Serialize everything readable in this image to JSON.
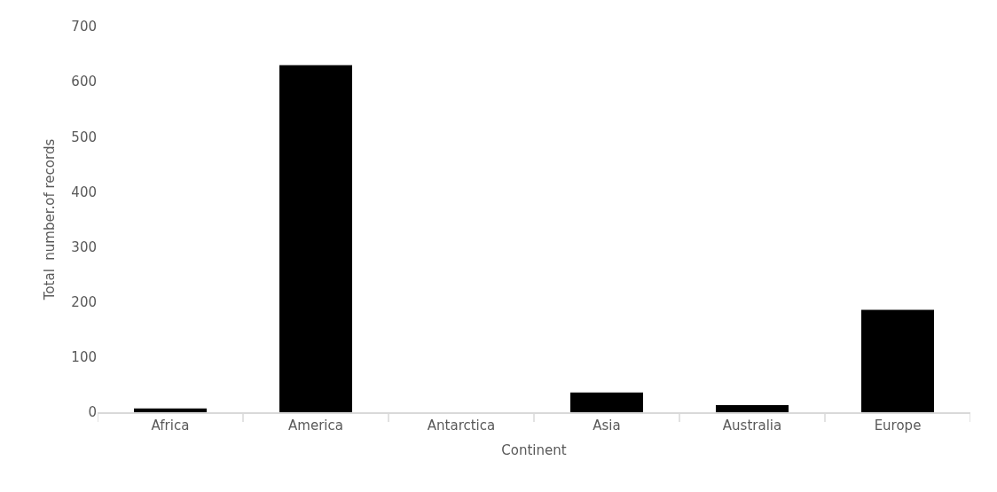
{
  "chart_data": {
    "type": "bar",
    "xlabel": "Continent",
    "ylabel": "Total  number.of records",
    "categories": [
      "Africa",
      "America",
      "Antarctica",
      "Asia",
      "Australia",
      "Europe"
    ],
    "values": [
      7,
      630,
      0,
      36,
      13,
      186
    ],
    "color": "#000000",
    "ylim": [
      0,
      700
    ],
    "yticks": [
      0,
      100,
      200,
      300,
      400,
      500,
      600,
      700
    ],
    "grid": false
  }
}
